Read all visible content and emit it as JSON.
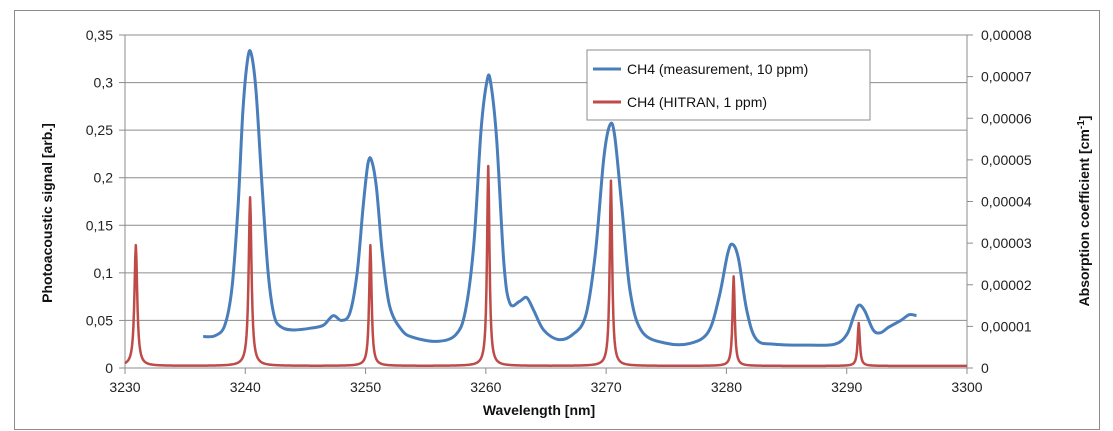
{
  "chart_data": {
    "type": "line",
    "xlabel": "Wavelength [nm]",
    "ylabel": "Photoacoustic signal [arb.]",
    "y2label_main": "Absorption coefficient [cm",
    "y2label_sup": "-1",
    "y2label_end": "]",
    "xlim": [
      3230,
      3300
    ],
    "ylim": [
      0,
      0.35
    ],
    "y2lim": [
      0,
      8e-05
    ],
    "x_ticks": [
      "3230",
      "3240",
      "3250",
      "3260",
      "3270",
      "3280",
      "3290",
      "3300"
    ],
    "y_ticks": [
      "0",
      "0,05",
      "0,1",
      "0,15",
      "0,2",
      "0,25",
      "0,3",
      "0,35"
    ],
    "y2_ticks": [
      "0",
      "0,00001",
      "0,00002",
      "0,00003",
      "0,00004",
      "0,00005",
      "0,00006",
      "0,00007",
      "0,00008"
    ],
    "grid": "horizontal",
    "legend_position": "top-right",
    "series": [
      {
        "name": "CH4 (measurement, 10 ppm)",
        "color": "#4a7ebb",
        "axis": "left",
        "points": [
          [
            3236.5,
            0.033
          ],
          [
            3237.5,
            0.034
          ],
          [
            3238.3,
            0.045
          ],
          [
            3238.9,
            0.085
          ],
          [
            3239.4,
            0.17
          ],
          [
            3239.8,
            0.27
          ],
          [
            3240.2,
            0.325
          ],
          [
            3240.5,
            0.33
          ],
          [
            3240.9,
            0.29
          ],
          [
            3241.4,
            0.19
          ],
          [
            3241.9,
            0.1
          ],
          [
            3242.4,
            0.055
          ],
          [
            3243.0,
            0.043
          ],
          [
            3244.0,
            0.04
          ],
          [
            3245.5,
            0.042
          ],
          [
            3246.5,
            0.045
          ],
          [
            3247.3,
            0.055
          ],
          [
            3248.0,
            0.05
          ],
          [
            3248.7,
            0.058
          ],
          [
            3249.3,
            0.1
          ],
          [
            3249.8,
            0.17
          ],
          [
            3250.2,
            0.215
          ],
          [
            3250.5,
            0.218
          ],
          [
            3250.9,
            0.19
          ],
          [
            3251.4,
            0.12
          ],
          [
            3252.0,
            0.065
          ],
          [
            3253.0,
            0.04
          ],
          [
            3254.0,
            0.032
          ],
          [
            3256.0,
            0.028
          ],
          [
            3257.5,
            0.035
          ],
          [
            3258.3,
            0.06
          ],
          [
            3259.0,
            0.13
          ],
          [
            3259.6,
            0.25
          ],
          [
            3260.1,
            0.302
          ],
          [
            3260.4,
            0.3
          ],
          [
            3260.9,
            0.24
          ],
          [
            3261.5,
            0.11
          ],
          [
            3262.0,
            0.068
          ],
          [
            3262.8,
            0.07
          ],
          [
            3263.4,
            0.074
          ],
          [
            3264.0,
            0.06
          ],
          [
            3264.8,
            0.04
          ],
          [
            3266.0,
            0.03
          ],
          [
            3267.2,
            0.035
          ],
          [
            3268.3,
            0.055
          ],
          [
            3269.1,
            0.12
          ],
          [
            3269.8,
            0.22
          ],
          [
            3270.3,
            0.255
          ],
          [
            3270.7,
            0.245
          ],
          [
            3271.3,
            0.17
          ],
          [
            3272.0,
            0.08
          ],
          [
            3273.0,
            0.038
          ],
          [
            3275.0,
            0.026
          ],
          [
            3277.0,
            0.026
          ],
          [
            3278.5,
            0.038
          ],
          [
            3279.4,
            0.075
          ],
          [
            3280.1,
            0.12
          ],
          [
            3280.5,
            0.13
          ],
          [
            3281.0,
            0.115
          ],
          [
            3281.7,
            0.06
          ],
          [
            3282.5,
            0.03
          ],
          [
            3284.0,
            0.025
          ],
          [
            3287.0,
            0.024
          ],
          [
            3289.0,
            0.025
          ],
          [
            3290.0,
            0.035
          ],
          [
            3290.6,
            0.055
          ],
          [
            3291.0,
            0.066
          ],
          [
            3291.5,
            0.06
          ],
          [
            3292.2,
            0.04
          ],
          [
            3292.8,
            0.037
          ],
          [
            3293.5,
            0.043
          ],
          [
            3294.5,
            0.05
          ],
          [
            3295.2,
            0.056
          ],
          [
            3295.8,
            0.055
          ]
        ]
      },
      {
        "name": "CH4 (HITRAN, 1 ppm)",
        "color": "#be4b48",
        "axis": "right",
        "baseline": 5e-07,
        "peaks": [
          [
            3230.9,
            2.9e-05,
            0.28
          ],
          [
            3240.4,
            4.05e-05,
            0.28
          ],
          [
            3250.4,
            2.9e-05,
            0.24
          ],
          [
            3260.2,
            4.8e-05,
            0.24
          ],
          [
            3270.4,
            4.45e-05,
            0.24
          ],
          [
            3280.6,
            2.15e-05,
            0.22
          ],
          [
            3291.0,
            1.03e-05,
            0.22
          ]
        ]
      }
    ]
  }
}
